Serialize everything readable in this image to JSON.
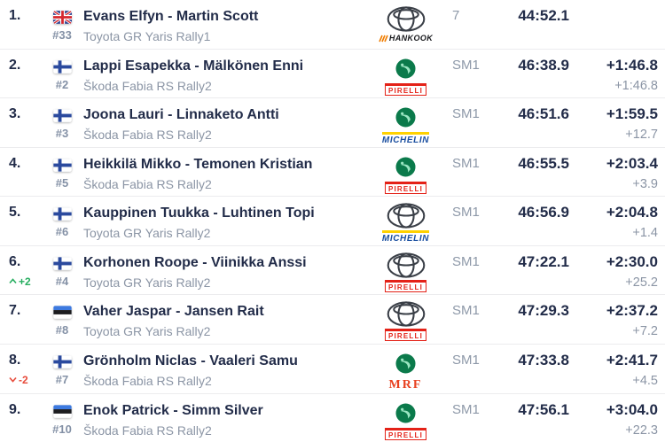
{
  "table": {
    "name": "rally-results-standings",
    "columns": [
      "position",
      "flag",
      "crew",
      "car",
      "manufacturer",
      "tyre",
      "class",
      "time",
      "gap",
      "interval"
    ]
  },
  "colors": {
    "text_primary": "#222c49",
    "text_secondary": "#8b95a5",
    "car_number": "#8491a6",
    "class_label": "#8d98a8",
    "gain_green": "#27ae60",
    "loss_red": "#e74c3c",
    "divider": "#ececee",
    "pirelli_red": "#e42218",
    "michelin_blue": "#1b4fa0",
    "michelin_yellow": "#ffd100",
    "hankook_orange": "#f07d00",
    "mrf_red": "#e8401f",
    "skoda_green": "#0b7a4b",
    "toyota_gray": "#3a3f47"
  },
  "rows": [
    {
      "pos": "1.",
      "change": null,
      "flag": "gb",
      "car_no": "#33",
      "crew": "Evans Elfyn - Martin Scott",
      "car": "Toyota GR Yaris Rally1",
      "make": "toyota",
      "tyre": "hankook",
      "class": "7",
      "time": "44:52.1",
      "gap": "",
      "interval": ""
    },
    {
      "pos": "2.",
      "change": null,
      "flag": "fi",
      "car_no": "#2",
      "crew": "Lappi Esapekka - Mälkönen Enni",
      "car": "Škoda Fabia RS Rally2",
      "make": "skoda",
      "tyre": "pirelli",
      "class": "SM1",
      "time": "46:38.9",
      "gap": "+1:46.8",
      "interval": "+1:46.8"
    },
    {
      "pos": "3.",
      "change": null,
      "flag": "fi",
      "car_no": "#3",
      "crew": "Joona Lauri - Linnaketo Antti",
      "car": "Škoda Fabia RS Rally2",
      "make": "skoda",
      "tyre": "michelin",
      "class": "SM1",
      "time": "46:51.6",
      "gap": "+1:59.5",
      "interval": "+12.7"
    },
    {
      "pos": "4.",
      "change": null,
      "flag": "fi",
      "car_no": "#5",
      "crew": "Heikkilä Mikko - Temonen Kristian",
      "car": "Škoda Fabia RS Rally2",
      "make": "skoda",
      "tyre": "pirelli",
      "class": "SM1",
      "time": "46:55.5",
      "gap": "+2:03.4",
      "interval": "+3.9"
    },
    {
      "pos": "5.",
      "change": null,
      "flag": "fi",
      "car_no": "#6",
      "crew": "Kauppinen Tuukka - Luhtinen Topi",
      "car": "Toyota GR Yaris Rally2",
      "make": "toyota",
      "tyre": "michelin",
      "class": "SM1",
      "time": "46:56.9",
      "gap": "+2:04.8",
      "interval": "+1.4"
    },
    {
      "pos": "6.",
      "change": {
        "dir": "up",
        "text": "+2"
      },
      "flag": "fi",
      "car_no": "#4",
      "crew": "Korhonen Roope - Viinikka Anssi",
      "car": "Toyota GR Yaris Rally2",
      "make": "toyota",
      "tyre": "pirelli",
      "class": "SM1",
      "time": "47:22.1",
      "gap": "+2:30.0",
      "interval": "+25.2"
    },
    {
      "pos": "7.",
      "change": null,
      "flag": "ee",
      "car_no": "#8",
      "crew": "Vaher Jaspar - Jansen Rait",
      "car": "Toyota GR Yaris Rally2",
      "make": "toyota",
      "tyre": "pirelli",
      "class": "SM1",
      "time": "47:29.3",
      "gap": "+2:37.2",
      "interval": "+7.2"
    },
    {
      "pos": "8.",
      "change": {
        "dir": "down",
        "text": "-2"
      },
      "flag": "fi",
      "car_no": "#7",
      "crew": "Grönholm Niclas - Vaaleri Samu",
      "car": "Škoda Fabia RS Rally2",
      "make": "skoda",
      "tyre": "mrf",
      "class": "SM1",
      "time": "47:33.8",
      "gap": "+2:41.7",
      "interval": "+4.5"
    },
    {
      "pos": "9.",
      "change": null,
      "flag": "ee",
      "car_no": "#10",
      "crew": "Enok Patrick - Simm Silver",
      "car": "Škoda Fabia RS Rally2",
      "make": "skoda",
      "tyre": "pirelli",
      "class": "SM1",
      "time": "47:56.1",
      "gap": "+3:04.0",
      "interval": "+22.3"
    }
  ]
}
